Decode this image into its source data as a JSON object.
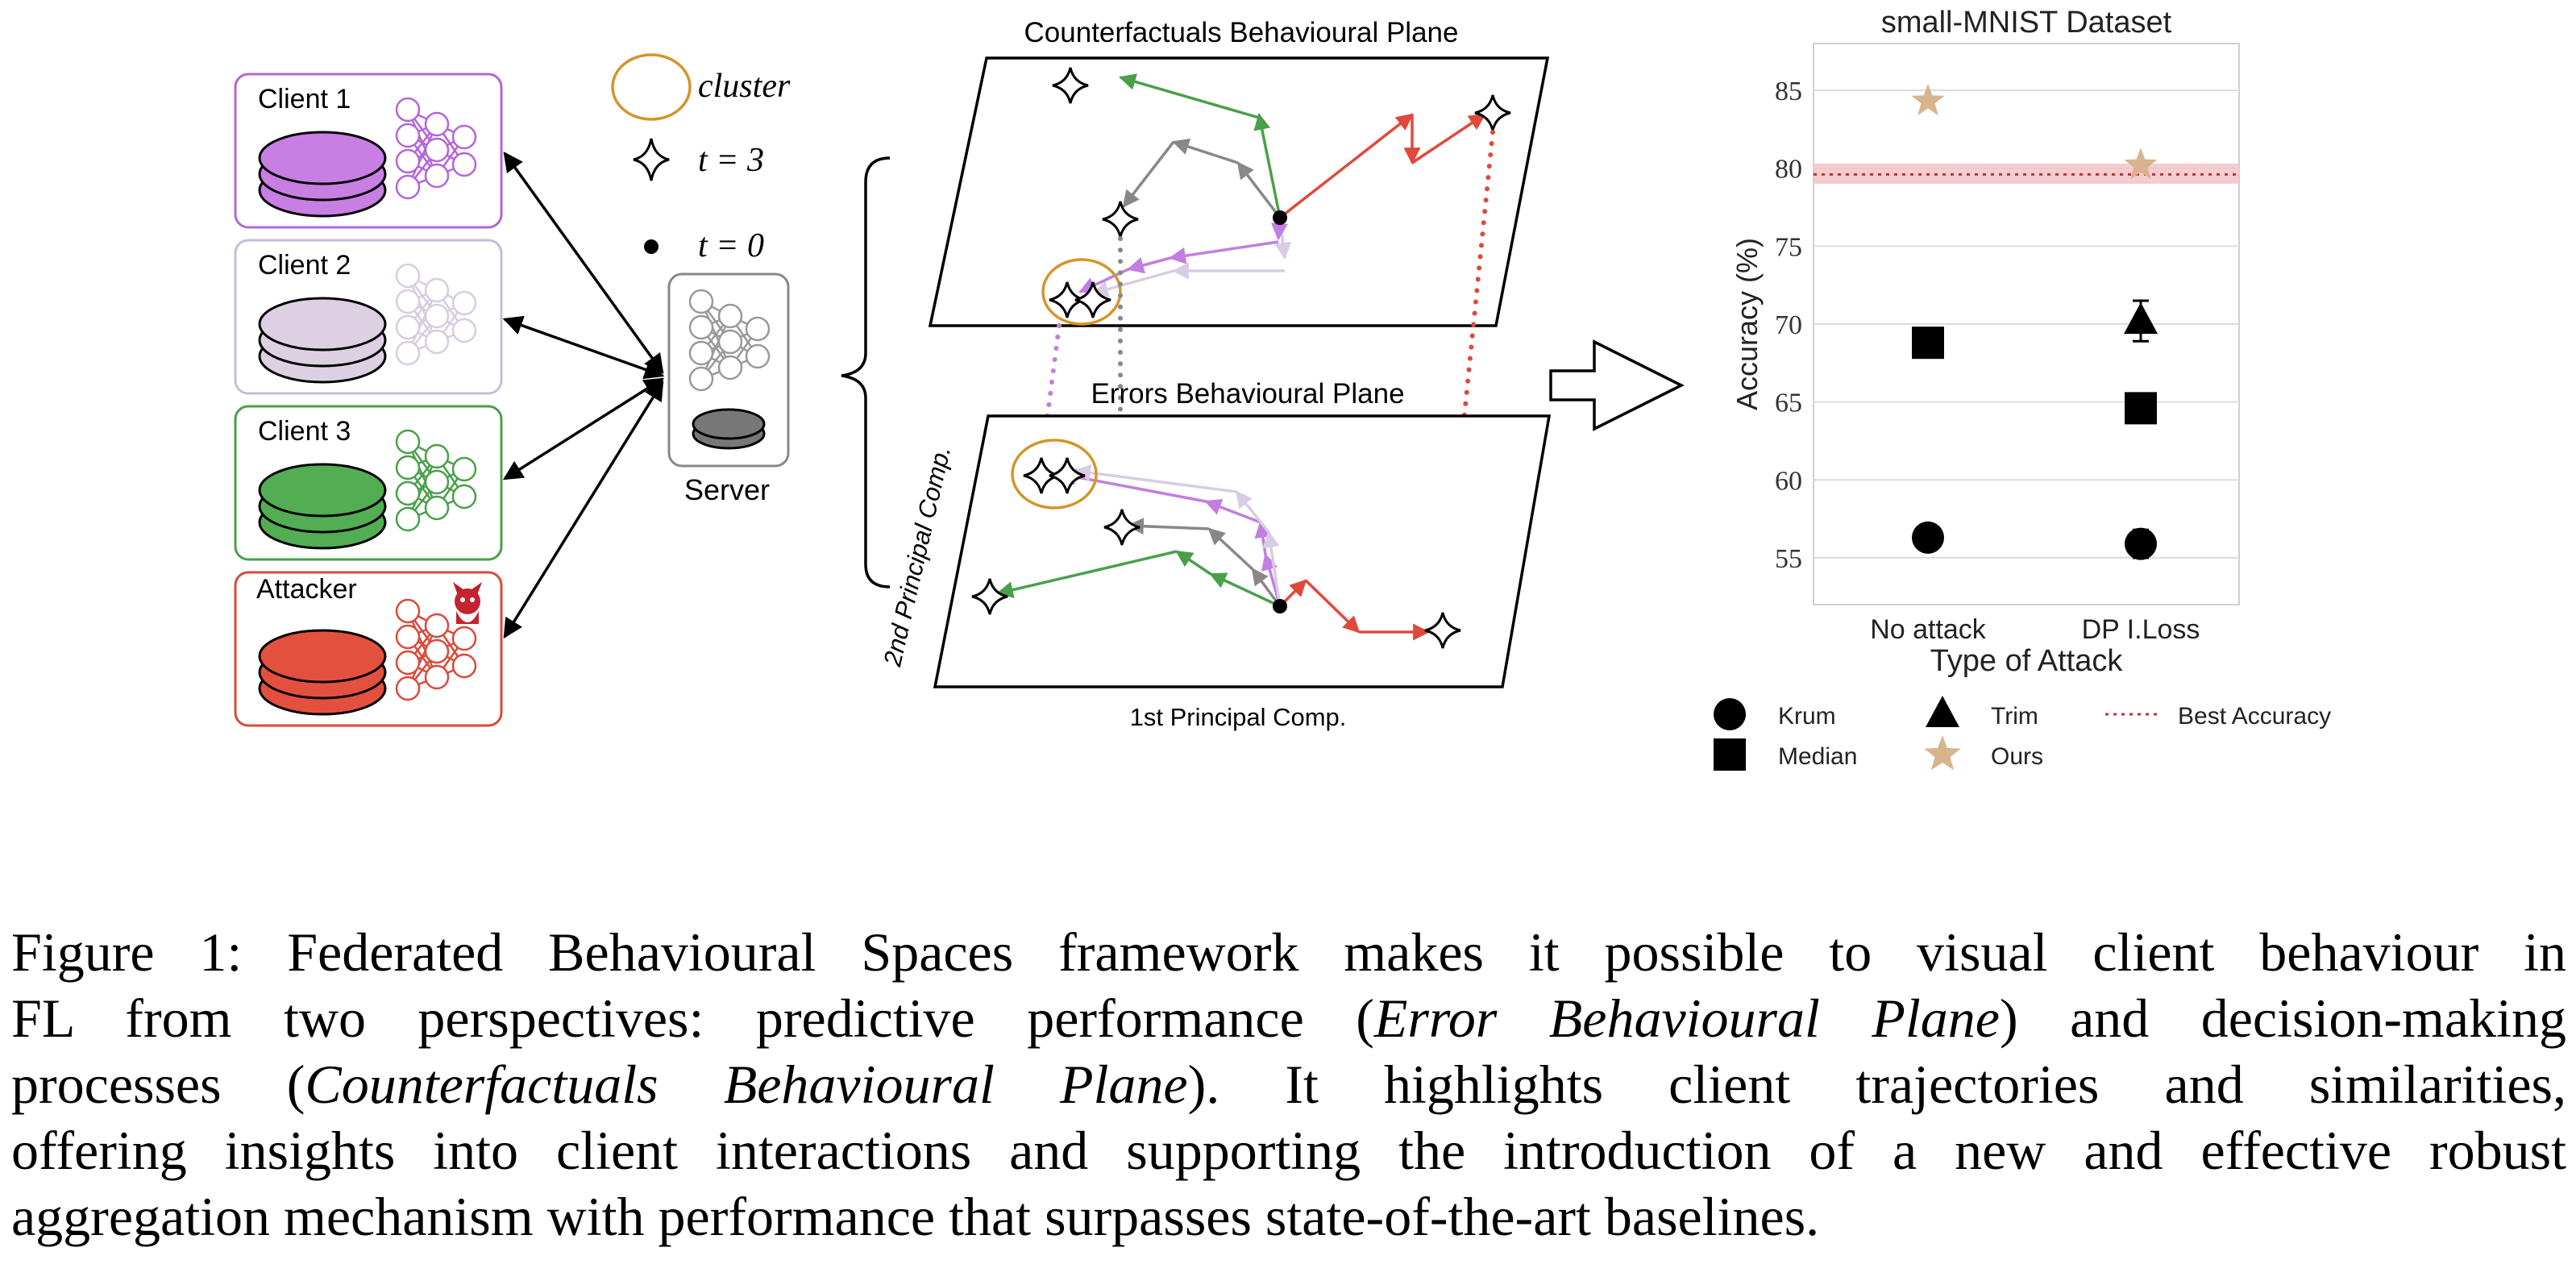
{
  "diagram": {
    "clients": [
      {
        "label": "Client 1",
        "color": "#b565d8",
        "fill": "#c97ee3"
      },
      {
        "label": "Client 2",
        "color": "#c9bcd6",
        "fill": "#ddd0e3"
      },
      {
        "label": "Client 3",
        "color": "#4aa04a",
        "fill": "#53ad53"
      },
      {
        "label": "Attacker",
        "color": "#d94a3a",
        "fill": "#e4503e"
      }
    ],
    "legend": {
      "cluster": "cluster",
      "t3": "t = 3",
      "t0": "t = 0"
    },
    "server_label": "Server",
    "cf_plane_title": "Counterfactuals Behavioural Plane",
    "err_plane_title": "Errors Behavioural Plane",
    "x_axis_label": "1st Principal Comp.",
    "y_axis_label": "2nd Principal Comp.",
    "cluster_color": "#d4952a"
  },
  "chart_data": {
    "type": "scatter",
    "title": "small-MNIST Dataset",
    "xlabel": "Type of Attack",
    "ylabel": "Accuracy (%)",
    "categories": [
      "No attack",
      "DP I.Loss"
    ],
    "ylim": [
      52,
      88
    ],
    "yticks": [
      55,
      60,
      65,
      70,
      75,
      80,
      85
    ],
    "grid": true,
    "series": [
      {
        "name": "Krum",
        "marker": "circle",
        "color": "#000000",
        "values": [
          56.3,
          55.9
        ],
        "err": [
          0.4,
          0.9
        ]
      },
      {
        "name": "Trim",
        "marker": "triangle",
        "color": "#000000",
        "values": [
          null,
          70.2
        ],
        "err": [
          null,
          1.3
        ]
      },
      {
        "name": "Median",
        "marker": "square",
        "color": "#000000",
        "values": [
          68.8,
          64.6
        ],
        "err": [
          0.6,
          0.3
        ]
      },
      {
        "name": "Ours",
        "marker": "star",
        "color": "#d8b38e",
        "values": [
          84.3,
          80.2
        ],
        "err": [
          0,
          0
        ]
      }
    ],
    "best_accuracy": {
      "name": "Best Accuracy",
      "value": 79.6,
      "band": [
        79.0,
        80.3
      ],
      "color": "#c0303c",
      "band_color": "#f2c4c8"
    },
    "legend_placement": "bottom"
  },
  "caption": {
    "lines": [
      [
        {
          "t": "Figure 1: Federated Behavioural Spaces framework makes it possible to visual client behaviour in"
        }
      ],
      [
        {
          "t": "FL from two perspectives: predictive performance ("
        },
        {
          "t": "Error Behavioural Plane",
          "i": true
        },
        {
          "t": ") and decision-making"
        }
      ],
      [
        {
          "t": "processes ("
        },
        {
          "t": "Counterfactuals Behavioural Plane",
          "i": true
        },
        {
          "t": ").  It highlights client trajectories and similarities,"
        }
      ],
      [
        {
          "t": "offering insights into client interactions and supporting the introduction of a new and effective robust"
        }
      ],
      [
        {
          "t": "aggregation mechanism with performance that surpasses state-of-the-art baselines."
        }
      ]
    ]
  }
}
